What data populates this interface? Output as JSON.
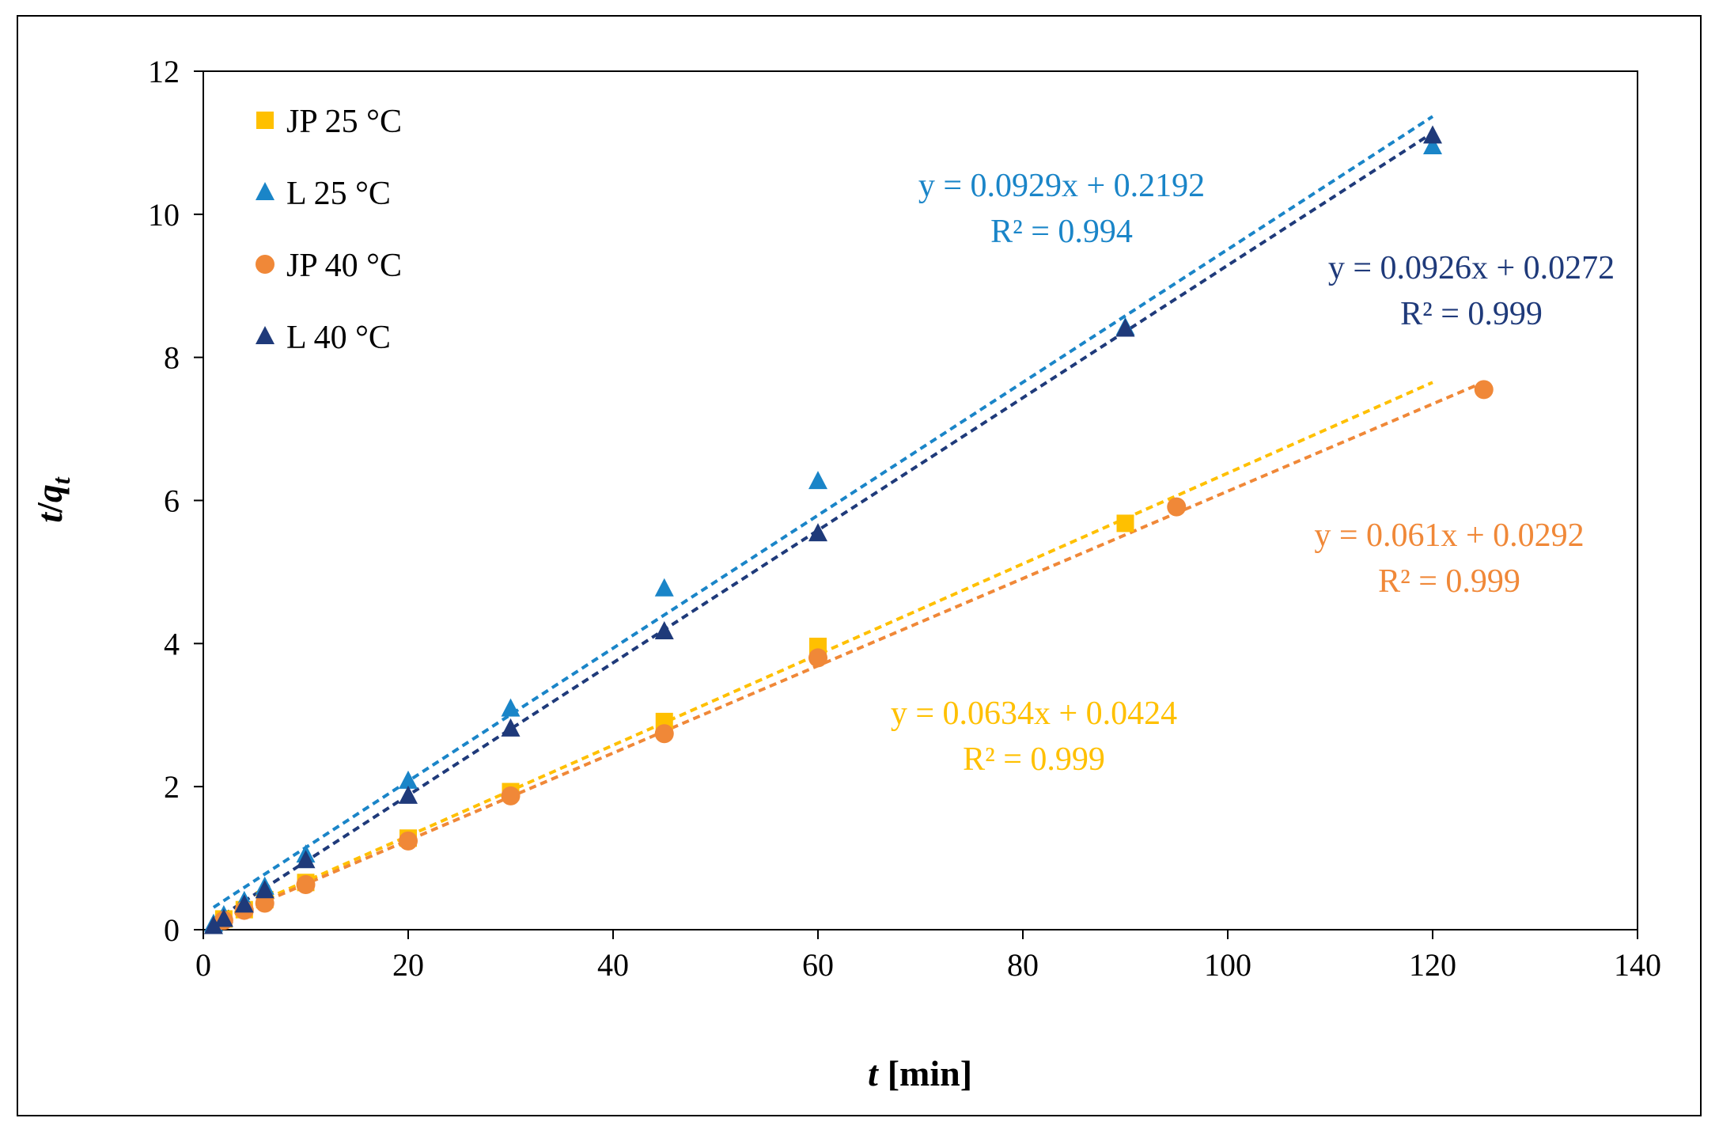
{
  "chart_data": {
    "type": "scatter",
    "xlabel_var": "t",
    "xlabel_unit": "[min]",
    "ylabel_var": "t",
    "ylabel_sep": "/",
    "ylabel_q": "q",
    "ylabel_sub": "t",
    "xlim": [
      0,
      140
    ],
    "ylim": [
      0,
      12
    ],
    "xticks": [
      0,
      20,
      40,
      60,
      80,
      100,
      120,
      140
    ],
    "yticks": [
      0,
      2,
      4,
      6,
      8,
      10,
      12
    ],
    "legend_position": "top-left",
    "series": [
      {
        "name": "JP 25 °C",
        "marker": "square",
        "color": "#FFC000",
        "x": [
          2,
          4,
          6,
          10,
          20,
          30,
          45,
          60,
          90
        ],
        "y": [
          0.15,
          0.28,
          0.42,
          0.66,
          1.28,
          1.93,
          2.91,
          3.96,
          5.68
        ],
        "fit": {
          "slope": 0.0634,
          "intercept": 0.0424,
          "x_range": [
            2,
            120
          ]
        },
        "equation": "y = 0.0634x + 0.0424",
        "r2": "R² = 0.999"
      },
      {
        "name": "L 25 °C",
        "marker": "triangle",
        "color": "#1A85C8",
        "x": [
          1,
          2,
          4,
          6,
          10,
          20,
          30,
          45,
          60,
          90,
          120
        ],
        "y": [
          0.08,
          0.2,
          0.4,
          0.6,
          1.05,
          2.08,
          3.09,
          4.77,
          6.27,
          8.42,
          10.95
        ],
        "fit": {
          "slope": 0.0929,
          "intercept": 0.2192,
          "x_range": [
            1,
            120
          ]
        },
        "equation": "y = 0.0929x + 0.2192",
        "r2": "R² = 0.994"
      },
      {
        "name": "JP 40 °C",
        "marker": "circle",
        "color": "#F08838",
        "x": [
          2,
          4,
          6,
          10,
          20,
          30,
          45,
          60,
          95,
          125
        ],
        "y": [
          0.13,
          0.27,
          0.37,
          0.63,
          1.24,
          1.87,
          2.74,
          3.8,
          5.91,
          7.55
        ],
        "fit": {
          "slope": 0.061,
          "intercept": 0.0292,
          "x_range": [
            2,
            125
          ]
        },
        "equation": "y = 0.061x + 0.0292",
        "r2": "R² = 0.999"
      },
      {
        "name": "L 40 °C",
        "marker": "triangle",
        "color": "#1F3A7A",
        "x": [
          1,
          2,
          4,
          6,
          10,
          20,
          30,
          45,
          60,
          90,
          120
        ],
        "y": [
          0.05,
          0.15,
          0.35,
          0.55,
          0.97,
          1.87,
          2.81,
          4.17,
          5.54,
          8.4,
          11.1
        ],
        "fit": {
          "slope": 0.0926,
          "intercept": 0.0272,
          "x_range": [
            1,
            120
          ]
        },
        "equation": "y = 0.0926x + 0.0272",
        "r2": "R² = 0.999"
      }
    ]
  }
}
